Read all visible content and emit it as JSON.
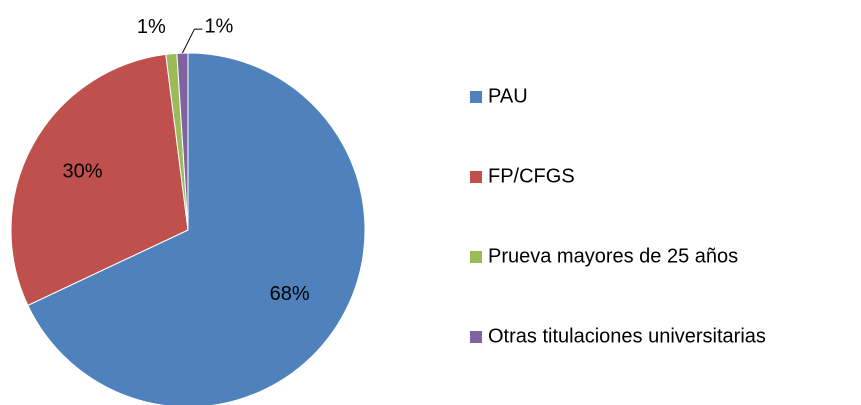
{
  "chart_data": {
    "type": "pie",
    "categories": [
      "PAU",
      "FP/CFGS",
      "Prueva mayores de 25 años",
      "Otras titulaciones universitarias"
    ],
    "values": [
      68,
      30,
      1,
      1
    ],
    "value_labels": [
      "68%",
      "30%",
      "1%",
      "1%"
    ],
    "colors": [
      "#4f81bd",
      "#c0504d",
      "#9bbb59",
      "#8064a2"
    ],
    "legend": "right"
  }
}
